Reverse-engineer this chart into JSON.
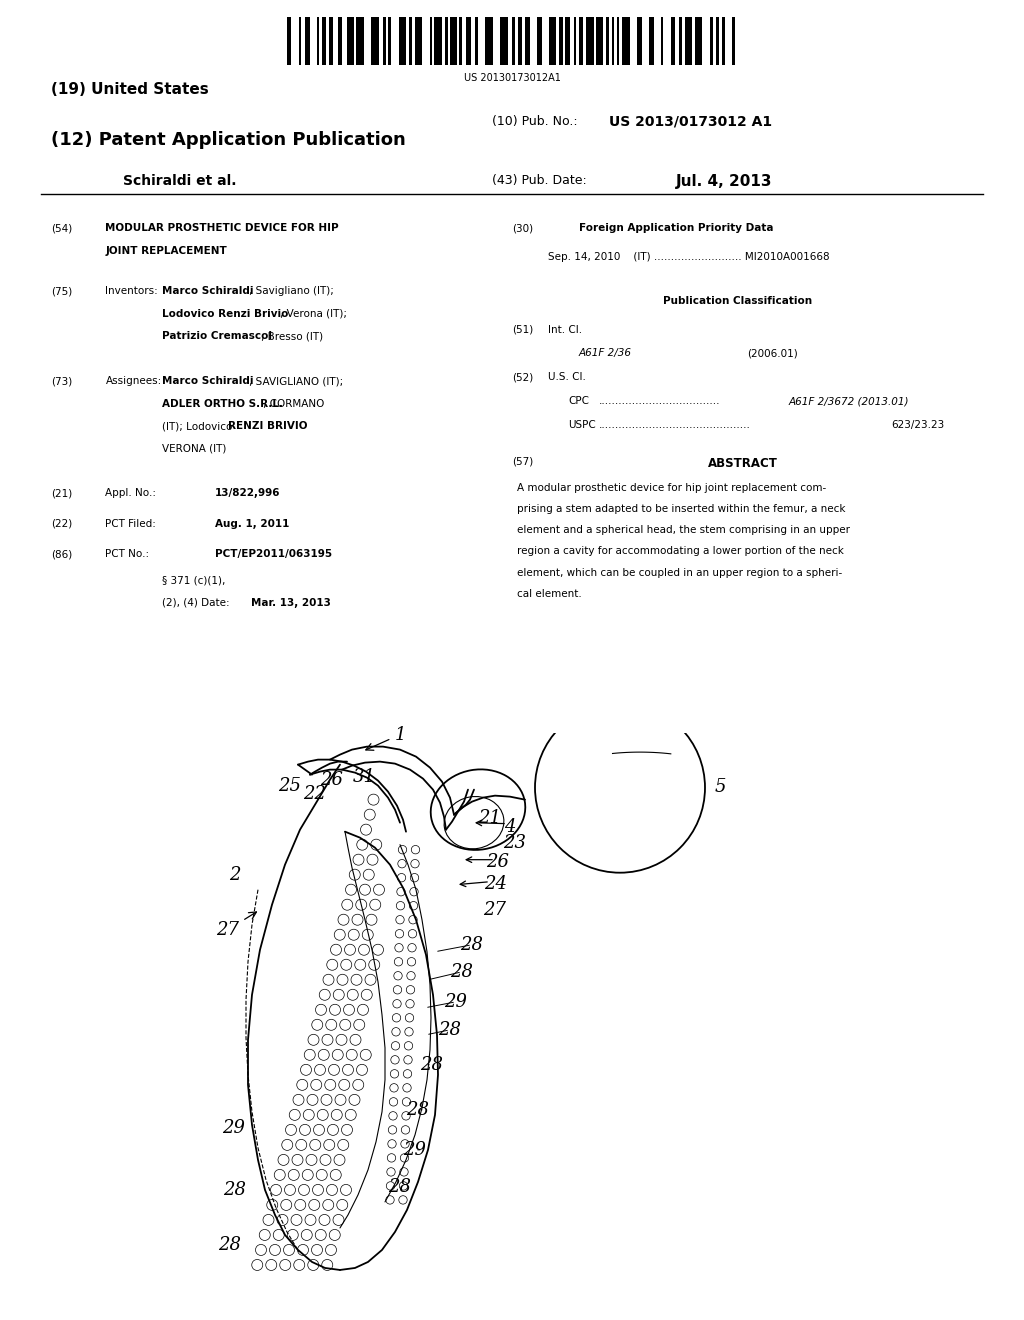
{
  "background_color": "#ffffff",
  "barcode_text": "US 20130173012A1",
  "title_19": "(19) United States",
  "title_12": "(12) Patent Application Publication",
  "pub_no_label": "(10) Pub. No.:",
  "pub_no_value": "US 2013/0173012 A1",
  "inventors_label": "Schiraldi et al.",
  "pub_date_label": "(43) Pub. Date:",
  "pub_date_value": "Jul. 4, 2013",
  "field54_label": "(54)",
  "field54_text1": "MODULAR PROSTHETIC DEVICE FOR HIP",
  "field54_text2": "JOINT REPLACEMENT",
  "field75_label": "(75)",
  "field75_title": "Inventors:",
  "field75_line1_bold": "Marco Schiraldi",
  "field75_line1_rest": ", Savigliano (IT);",
  "field75_line2_bold": "Lodovico Renzi Brivio",
  "field75_line2_rest": ", Verona (IT);",
  "field75_line3_bold": "Patrizio Cremascol",
  "field75_line3_rest": ", Bresso (IT)",
  "field73_label": "(73)",
  "field73_title": "Assignees:",
  "field73_line1_bold": "Marco Schiraldi",
  "field73_line1_rest": ", SAVIGLIANO (IT);",
  "field73_line2_bold": "ADLER ORTHO S.R.L.",
  "field73_line2_rest": ", CORMANO",
  "field73_line3": "(IT); Lodovico ",
  "field73_line3_bold": "RENZI BRIVIO",
  "field73_line3_rest": ",",
  "field73_line4": "VERONA (IT)",
  "field21_label": "(21)",
  "field21_title": "Appl. No.:",
  "field21_value": "13/822,996",
  "field22_label": "(22)",
  "field22_title": "PCT Filed:",
  "field22_value": "Aug. 1, 2011",
  "field86_label": "(86)",
  "field86_title": "PCT No.:",
  "field86_value": "PCT/EP2011/063195",
  "field86b_title": "§ 371 (c)(1),",
  "field86b_sub": "(2), (4) Date:",
  "field86b_value": "Mar. 13, 2013",
  "field30_label": "(30)",
  "field30_title": "Foreign Application Priority Data",
  "field30_line": "Sep. 14, 2010    (IT) .......................... MI2010A001668",
  "pub_class_title": "Publication Classification",
  "field51_label": "(51)",
  "field51_title": "Int. Cl.",
  "field51_class": "A61F 2/36",
  "field51_year": "(2006.01)",
  "field52_label": "(52)",
  "field52_title": "U.S. Cl.",
  "field52_cpc_label": "CPC",
  "field52_cpc_dots": "....................................",
  "field52_cpc_value": "A61F 2/3672 (2013.01)",
  "field52_uspc_label": "USPC",
  "field52_uspc_dots": ".............................................",
  "field52_uspc_value": "623/23.23",
  "field57_label": "(57)",
  "field57_title": "ABSTRACT",
  "abstract_lines": [
    "A modular prosthetic device for hip joint replacement com-",
    "prising a stem adapted to be inserted within the femur, a neck",
    "element and a spherical head, the stem comprising in an upper",
    "region a cavity for accommodating a lower portion of the neck",
    "element, which can be coupled in an upper region to a spheri-",
    "cal element."
  ]
}
